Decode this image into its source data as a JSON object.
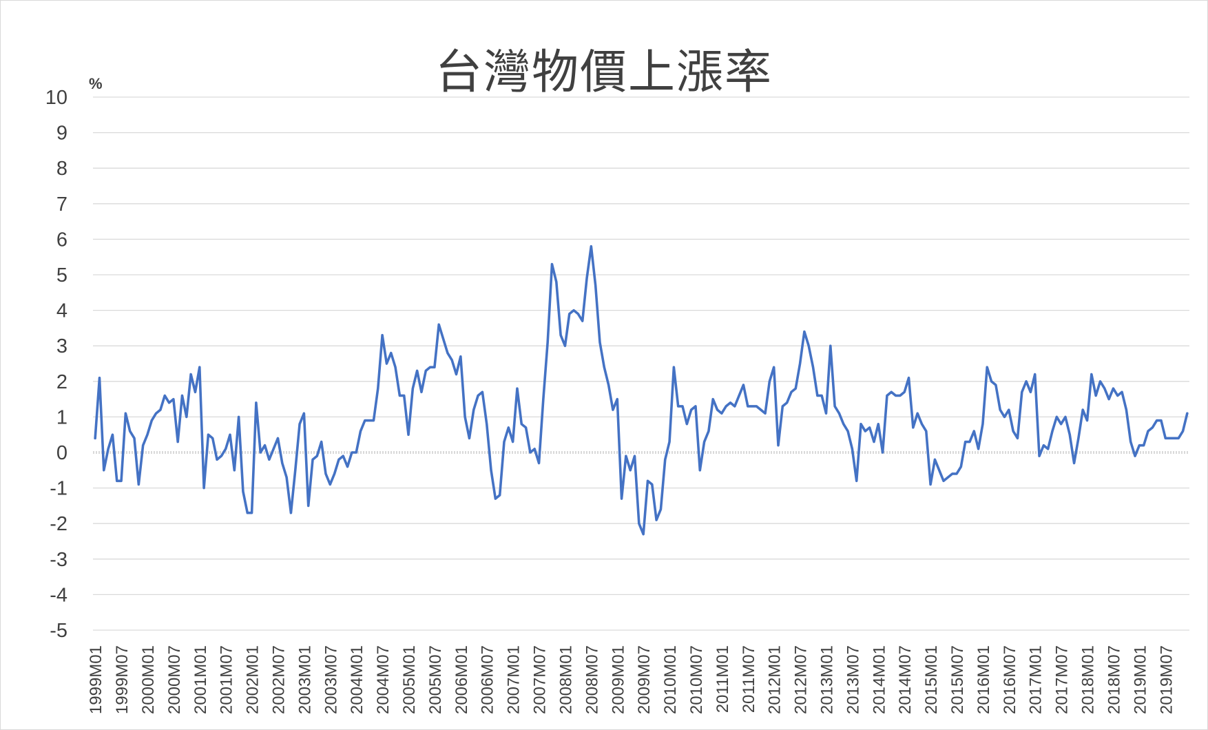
{
  "chart_data": {
    "type": "line",
    "title": "台灣物價上漲率",
    "ylabel": "%",
    "xlabel": "",
    "ylim": [
      -5,
      10
    ],
    "yticks": [
      10,
      9,
      8,
      7,
      6,
      5,
      4,
      3,
      2,
      1,
      0,
      -1,
      -2,
      -3,
      -4,
      -5
    ],
    "grid": true,
    "legend": "none",
    "x_tick_labels": [
      "1999M01",
      "1999M07",
      "2000M01",
      "2000M07",
      "2001M01",
      "2001M07",
      "2002M01",
      "2002M07",
      "2003M01",
      "2003M07",
      "2004M01",
      "2004M07",
      "2005M01",
      "2005M07",
      "2006M01",
      "2006M07",
      "2007M01",
      "2007M07",
      "2008M01",
      "2008M07",
      "2009M01",
      "2009M07",
      "2010M01",
      "2010M07",
      "2011M01",
      "2011M07",
      "2012M01",
      "2012M07",
      "2013M01",
      "2013M07",
      "2014M01",
      "2014M07",
      "2015M01",
      "2015M07",
      "2016M01",
      "2016M07",
      "2017M01",
      "2017M07",
      "2018M01",
      "2018M07",
      "2019M01",
      "2019M07"
    ],
    "x_start": "1999M01",
    "x_end": "2019M12",
    "series": [
      {
        "name": "台灣物價上漲率",
        "color": "#4472c4",
        "values": [
          0.4,
          2.1,
          -0.5,
          0.1,
          0.5,
          -0.8,
          -0.8,
          1.1,
          0.6,
          0.4,
          -0.9,
          0.2,
          0.5,
          0.9,
          1.1,
          1.2,
          1.6,
          1.4,
          1.5,
          0.3,
          1.6,
          1.0,
          2.2,
          1.7,
          2.4,
          -1.0,
          0.5,
          0.4,
          -0.2,
          -0.1,
          0.1,
          0.5,
          -0.5,
          1.0,
          -1.1,
          -1.7,
          -1.7,
          1.4,
          0.0,
          0.2,
          -0.2,
          0.1,
          0.4,
          -0.3,
          -0.7,
          -1.7,
          -0.5,
          0.8,
          1.1,
          -1.5,
          -0.2,
          -0.1,
          0.3,
          -0.6,
          -0.9,
          -0.6,
          -0.2,
          -0.1,
          -0.4,
          0.0,
          0.0,
          0.6,
          0.9,
          0.9,
          0.9,
          1.8,
          3.3,
          2.5,
          2.8,
          2.4,
          1.6,
          1.6,
          0.5,
          1.8,
          2.3,
          1.7,
          2.3,
          2.4,
          2.4,
          3.6,
          3.2,
          2.8,
          2.6,
          2.2,
          2.7,
          1.0,
          0.4,
          1.2,
          1.6,
          1.7,
          0.8,
          -0.5,
          -1.3,
          -1.2,
          0.3,
          0.7,
          0.3,
          1.8,
          0.8,
          0.7,
          0.0,
          0.1,
          -0.3,
          1.5,
          3.1,
          5.3,
          4.8,
          3.3,
          3.0,
          3.9,
          4.0,
          3.9,
          3.7,
          4.9,
          5.8,
          4.7,
          3.1,
          2.4,
          1.9,
          1.2,
          1.5,
          -1.3,
          -0.1,
          -0.5,
          -0.1,
          -2.0,
          -2.3,
          -0.8,
          -0.9,
          -1.9,
          -1.6,
          -0.2,
          0.3,
          2.4,
          1.3,
          1.3,
          0.8,
          1.2,
          1.3,
          -0.5,
          0.3,
          0.6,
          1.5,
          1.2,
          1.1,
          1.3,
          1.4,
          1.3,
          1.6,
          1.9,
          1.3,
          1.3,
          1.3,
          1.2,
          1.1,
          2.0,
          2.4,
          0.2,
          1.3,
          1.4,
          1.7,
          1.8,
          2.5,
          3.4,
          3.0,
          2.4,
          1.6,
          1.6,
          1.1,
          3.0,
          1.3,
          1.1,
          0.8,
          0.6,
          0.1,
          -0.8,
          0.8,
          0.6,
          0.7,
          0.3,
          0.8,
          0.0,
          1.6,
          1.7,
          1.6,
          1.6,
          1.7,
          2.1,
          0.7,
          1.1,
          0.8,
          0.6,
          -0.9,
          -0.2,
          -0.5,
          -0.8,
          -0.7,
          -0.6,
          -0.6,
          -0.4,
          0.3,
          0.3,
          0.6,
          0.1,
          0.8,
          2.4,
          2.0,
          1.9,
          1.2,
          1.0,
          1.2,
          0.6,
          0.4,
          1.7,
          2.0,
          1.7,
          2.2,
          -0.1,
          0.2,
          0.1,
          0.6,
          1.0,
          0.8,
          1.0,
          0.5,
          -0.3,
          0.4,
          1.2,
          0.9,
          2.2,
          1.6,
          2.0,
          1.8,
          1.5,
          1.8,
          1.6,
          1.7,
          1.2,
          0.3,
          -0.1,
          0.2,
          0.2,
          0.6,
          0.7,
          0.9,
          0.9,
          0.4,
          0.4,
          0.4,
          0.4,
          0.6,
          1.1
        ]
      }
    ]
  }
}
